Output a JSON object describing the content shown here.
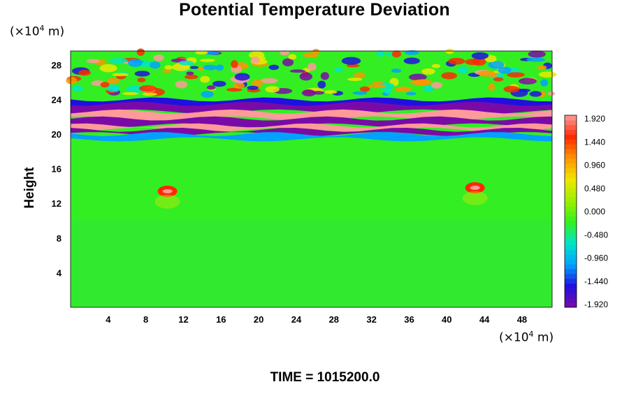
{
  "chart_data": {
    "type": "heatmap",
    "title": "Potential Temperature Deviation",
    "ylabel": "Height",
    "x_unit": "(×10⁴ m)",
    "y_unit": "(×10⁴ m)",
    "unit_base": "(×10",
    "unit_exp": "4",
    "unit_tail": " m)",
    "xlim": [
      0,
      51.2
    ],
    "ylim": [
      0,
      29.6
    ],
    "x_ticks": [
      4,
      8,
      12,
      16,
      20,
      24,
      28,
      32,
      36,
      40,
      44,
      48
    ],
    "y_ticks": [
      4,
      8,
      12,
      16,
      20,
      24,
      28
    ],
    "colorbar": {
      "levels": [
        1.92,
        1.44,
        0.96,
        0.48,
        0.0,
        -0.48,
        -0.96,
        -1.44,
        -1.92
      ],
      "labels": [
        "1.920",
        "1.440",
        "0.960",
        "0.480",
        "0.000",
        "-0.480",
        "-0.960",
        "-1.440",
        "-1.920"
      ],
      "range": [
        -1.92,
        1.92
      ]
    },
    "colormap_stops": [
      "#7a0aa8",
      "#1f10e0",
      "#00a2ff",
      "#00e5c8",
      "#33f01e",
      "#9cf000",
      "#f0e600",
      "#ff9400",
      "#ff2800",
      "#ff9a9a"
    ],
    "time_label": "TIME = 1015200.0"
  }
}
